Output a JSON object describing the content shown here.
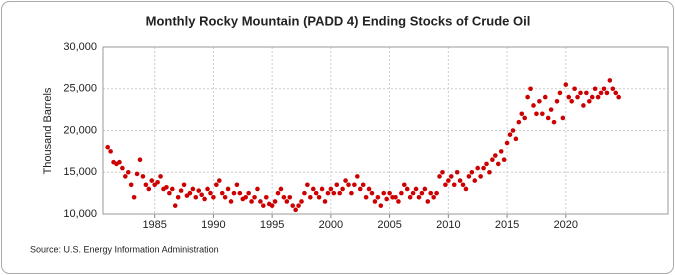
{
  "chart_data": {
    "type": "scatter",
    "title": "Monthly Rocky Mountain (PADD 4) Ending Stocks of Crude Oil",
    "y_label": "Thousand Barrels",
    "source": "Source: U.S. Energy Information Administration",
    "color": "#cc0000",
    "x": [
      1981,
      1981.25,
      1981.5,
      1981.75,
      1982,
      1982.25,
      1982.5,
      1982.75,
      1983,
      1983.25,
      1983.5,
      1983.75,
      1984,
      1984.25,
      1984.5,
      1984.75,
      1985,
      1985.25,
      1985.5,
      1985.75,
      1986,
      1986.25,
      1986.5,
      1986.75,
      1987,
      1987.25,
      1987.5,
      1987.75,
      1988,
      1988.25,
      1988.5,
      1988.75,
      1989,
      1989.25,
      1989.5,
      1989.75,
      1990,
      1990.25,
      1990.5,
      1990.75,
      1991,
      1991.25,
      1991.5,
      1991.75,
      1992,
      1992.25,
      1992.5,
      1992.75,
      1993,
      1993.25,
      1993.5,
      1993.75,
      1994,
      1994.25,
      1994.5,
      1994.75,
      1995,
      1995.25,
      1995.5,
      1995.75,
      1996,
      1996.25,
      1996.5,
      1996.75,
      1997,
      1997.25,
      1997.5,
      1997.75,
      1998,
      1998.25,
      1998.5,
      1998.75,
      1999,
      1999.25,
      1999.5,
      1999.75,
      2000,
      2000.25,
      2000.5,
      2000.75,
      2001,
      2001.25,
      2001.5,
      2001.75,
      2002,
      2002.25,
      2002.5,
      2002.75,
      2003,
      2003.25,
      2003.5,
      2003.75,
      2004,
      2004.25,
      2004.5,
      2004.75,
      2005,
      2005.25,
      2005.5,
      2005.75,
      2006,
      2006.25,
      2006.5,
      2006.75,
      2007,
      2007.25,
      2007.5,
      2007.75,
      2008,
      2008.25,
      2008.5,
      2008.75,
      2009,
      2009.25,
      2009.5,
      2009.75,
      2010,
      2010.25,
      2010.5,
      2010.75,
      2011,
      2011.25,
      2011.5,
      2011.75,
      2012,
      2012.25,
      2012.5,
      2012.75,
      2013,
      2013.25,
      2013.5,
      2013.75,
      2014,
      2014.25,
      2014.5,
      2014.75,
      2015,
      2015.25,
      2015.5,
      2015.75,
      2016,
      2016.25,
      2016.5,
      2016.75,
      2017,
      2017.25,
      2017.5,
      2017.75,
      2018,
      2018.25,
      2018.5,
      2018.75,
      2019,
      2019.25,
      2019.5,
      2019.75,
      2020,
      2020.25,
      2020.5,
      2020.75,
      2021,
      2021.25,
      2021.5,
      2021.75,
      2022,
      2022.25,
      2022.5,
      2022.75,
      2023,
      2023.25,
      2023.5,
      2023.75,
      2024,
      2024.25,
      2024.5
    ],
    "values": [
      18000,
      17500,
      16200,
      16000,
      16200,
      15500,
      14500,
      15000,
      13500,
      12000,
      14800,
      16500,
      14500,
      13500,
      13000,
      14000,
      13500,
      13800,
      14500,
      13000,
      13200,
      12500,
      13000,
      11000,
      12000,
      12800,
      13500,
      12200,
      12500,
      13000,
      12000,
      12800,
      12300,
      11800,
      13000,
      12500,
      12000,
      13500,
      14000,
      12500,
      12000,
      13000,
      11500,
      12500,
      13500,
      12500,
      11800,
      12000,
      12500,
      11500,
      12000,
      13000,
      11500,
      11000,
      12000,
      11200,
      11000,
      11500,
      12500,
      13000,
      12000,
      11500,
      12000,
      11000,
      10500,
      11000,
      11500,
      12500,
      13500,
      12000,
      13000,
      12500,
      12000,
      13000,
      11500,
      12500,
      13000,
      12500,
      13500,
      12500,
      13000,
      14000,
      13500,
      12500,
      13500,
      14500,
      13000,
      13500,
      12000,
      13000,
      12500,
      11500,
      12000,
      11000,
      12500,
      11800,
      12500,
      12000,
      12000,
      11500,
      12500,
      13500,
      13000,
      12000,
      12500,
      13000,
      12000,
      12500,
      13000,
      11500,
      12500,
      12000,
      12500,
      14500,
      15000,
      13500,
      14000,
      14500,
      13500,
      15000,
      14000,
      13500,
      13000,
      14500,
      15000,
      14000,
      15500,
      14500,
      15500,
      16000,
      15000,
      16500,
      17000,
      16000,
      17500,
      16500,
      18500,
      19500,
      20000,
      19000,
      21000,
      22000,
      21500,
      24000,
      25000,
      23000,
      22000,
      23500,
      22000,
      24000,
      21500,
      22500,
      21000,
      23500,
      24500,
      21500,
      25500,
      24000,
      23500,
      25000,
      24000,
      24500,
      23000,
      24500,
      23500,
      24000,
      25000,
      24000,
      24500,
      25000,
      24500,
      26000,
      25000,
      24500,
      24000
    ],
    "xlim": [
      1980.6,
      2028.7
    ],
    "xticks": [
      1985,
      1990,
      1995,
      2000,
      2005,
      2010,
      2015,
      2020
    ],
    "ylim": [
      10000,
      30000
    ],
    "yticks": [
      {
        "value": 10000,
        "label": "10,000"
      },
      {
        "value": 15000,
        "label": "15,000"
      },
      {
        "value": 20000,
        "label": "20,000"
      },
      {
        "value": 25000,
        "label": "25,000"
      },
      {
        "value": 30000,
        "label": "30,000"
      }
    ],
    "grid": true
  }
}
